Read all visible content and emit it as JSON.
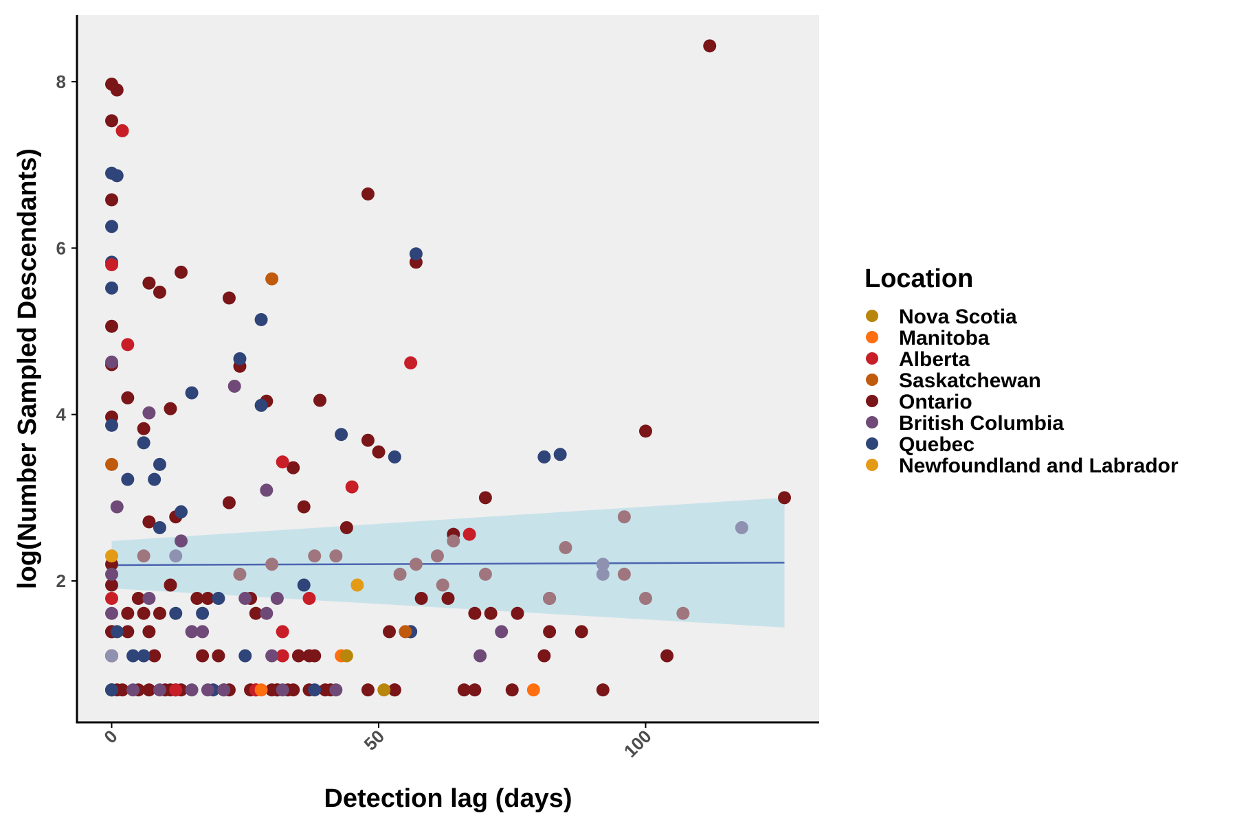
{
  "chart_data": {
    "type": "scatter",
    "xlabel": "Detection lag (days)",
    "ylabel": "log(Number Sampled Descendants)",
    "xlim": [
      -6.5,
      132.5
    ],
    "ylim": [
      0.3,
      8.8
    ],
    "x_ticks": [
      0,
      50,
      100
    ],
    "y_ticks": [
      2,
      4,
      6,
      8
    ],
    "grid": false,
    "background": "#efefef",
    "legend": {
      "title": "Location",
      "placement": "right",
      "entries": [
        {
          "name": "Nova Scotia",
          "color": "#b8860b"
        },
        {
          "name": "Manitoba",
          "color": "#ff6f0f"
        },
        {
          "name": "Alberta",
          "color": "#c81e28"
        },
        {
          "name": "Saskatchewan",
          "color": "#c05a0c"
        },
        {
          "name": "Ontario",
          "color": "#7a1518"
        },
        {
          "name": "British Columbia",
          "color": "#6f4a78"
        },
        {
          "name": "Quebec",
          "color": "#2f4478"
        },
        {
          "name": "Newfoundland and Labrador",
          "color": "#e39b16"
        }
      ]
    },
    "trend": {
      "x": [
        0,
        126
      ],
      "y": [
        2.19,
        2.22
      ],
      "ci_upper": [
        2.48,
        3.0
      ],
      "ci_lower": [
        1.91,
        1.44
      ],
      "line_color": "#4a64b0",
      "band_color": "#add8e6"
    },
    "series": [
      {
        "name": "Ontario",
        "color": "#7a1518",
        "x": [
          0,
          0,
          1,
          0,
          0,
          0,
          0,
          0,
          0,
          0,
          0,
          0,
          3,
          6,
          7,
          9,
          11,
          13,
          22,
          24,
          29,
          39,
          48,
          50,
          57,
          36,
          34,
          38,
          44,
          12,
          7,
          11,
          22,
          27,
          37,
          1,
          3,
          5,
          6,
          7,
          9,
          11,
          13,
          16,
          17,
          20,
          26,
          27,
          31,
          33,
          35,
          37,
          41,
          52,
          53,
          56,
          58,
          63,
          68,
          71,
          76,
          82,
          88,
          100,
          104,
          112,
          126,
          70,
          64,
          0,
          2,
          7,
          21,
          22,
          26,
          30,
          31,
          34,
          40,
          48,
          53,
          66,
          68,
          75,
          92,
          82,
          81,
          48,
          3,
          5,
          8,
          10,
          18
        ],
        "y": [
          7.97,
          7.53,
          7.9,
          6.58,
          5.06,
          4.6,
          3.97,
          2.2,
          1.95,
          1.39,
          1.1,
          0.69,
          4.2,
          3.83,
          5.58,
          5.47,
          4.07,
          5.71,
          5.4,
          4.58,
          4.16,
          4.17,
          6.65,
          3.55,
          5.83,
          2.89,
          3.36,
          1.1,
          2.64,
          2.77,
          2.71,
          1.95,
          2.94,
          1.61,
          1.1,
          0.69,
          1.39,
          1.79,
          1.61,
          1.39,
          1.61,
          0.69,
          0.69,
          1.79,
          1.1,
          1.1,
          1.79,
          0.69,
          0.69,
          0.69,
          1.1,
          0.69,
          0.69,
          1.39,
          0.69,
          1.39,
          1.79,
          1.79,
          1.61,
          1.61,
          1.61,
          1.39,
          1.39,
          3.8,
          1.1,
          8.43,
          3.0,
          3.0,
          2.56,
          1.39,
          0.69,
          0.69,
          0.69,
          0.69,
          0.69,
          0.69,
          0.69,
          0.69,
          0.69,
          0.69,
          0.69,
          0.69,
          0.69,
          0.69,
          0.69,
          1.79,
          1.1,
          3.69,
          1.61,
          0.69,
          1.1,
          0.69,
          1.79
        ]
      },
      {
        "name": "Quebec",
        "color": "#2f4478",
        "x": [
          0,
          0,
          1,
          0,
          0,
          0,
          0,
          6,
          9,
          15,
          24,
          28,
          28,
          43,
          53,
          57,
          81,
          84,
          3,
          8,
          9,
          13,
          12,
          17,
          20,
          25,
          36,
          56,
          4,
          6,
          0,
          12,
          19,
          38,
          1
        ],
        "y": [
          6.9,
          6.26,
          6.87,
          5.83,
          5.52,
          3.87,
          0.69,
          3.66,
          3.4,
          4.26,
          4.67,
          5.14,
          4.11,
          3.76,
          3.49,
          5.93,
          3.49,
          3.52,
          3.22,
          3.22,
          2.64,
          2.83,
          1.61,
          1.61,
          1.79,
          1.1,
          1.95,
          1.39,
          1.1,
          1.1,
          0.69,
          0.69,
          0.69,
          0.69,
          1.39
        ]
      },
      {
        "name": "Alberta",
        "color": "#c81e28",
        "x": [
          0,
          2,
          3,
          0,
          56,
          45,
          32,
          37,
          32,
          32,
          67,
          12,
          27,
          0
        ],
        "y": [
          5.8,
          7.41,
          4.84,
          1.79,
          4.62,
          3.13,
          3.43,
          1.79,
          1.39,
          1.1,
          2.56,
          0.69,
          0.69,
          1.1
        ]
      },
      {
        "name": "British Columbia",
        "color": "#6f4a78",
        "x": [
          0,
          7,
          23,
          29,
          1,
          13,
          0,
          7,
          25,
          31,
          15,
          17,
          29,
          30,
          69,
          73,
          0,
          4,
          9,
          15,
          18,
          21,
          32,
          42
        ],
        "y": [
          4.63,
          4.02,
          4.34,
          3.09,
          2.89,
          2.48,
          2.08,
          1.79,
          1.79,
          1.79,
          1.39,
          1.39,
          1.61,
          1.1,
          1.1,
          1.39,
          1.61,
          0.69,
          0.69,
          0.69,
          0.69,
          0.69,
          0.69,
          0.69
        ]
      },
      {
        "name": "British Columbia",
        "color": "#8f91b0",
        "x": [
          12,
          92,
          118,
          0,
          92
        ],
        "y": [
          2.3,
          2.2,
          2.64,
          1.1,
          2.08
        ]
      },
      {
        "name": "British Columbia",
        "color": "#a0767e",
        "x": [
          6,
          24,
          30,
          38,
          42,
          54,
          57,
          61,
          62,
          64,
          70,
          85,
          96,
          100,
          107,
          96,
          82
        ],
        "y": [
          2.3,
          2.08,
          2.2,
          2.3,
          2.3,
          2.08,
          2.2,
          2.3,
          1.95,
          2.48,
          2.08,
          2.4,
          2.08,
          1.79,
          1.61,
          2.77,
          1.79
        ]
      },
      {
        "name": "Saskatchewan",
        "color": "#c05a0c",
        "x": [
          0,
          30,
          55
        ],
        "y": [
          3.4,
          5.63,
          1.39
        ]
      },
      {
        "name": "Manitoba",
        "color": "#ff6f0f",
        "x": [
          43,
          79,
          28
        ],
        "y": [
          1.1,
          0.69,
          0.69
        ]
      },
      {
        "name": "Nova Scotia",
        "color": "#b8860b",
        "x": [
          44,
          51
        ],
        "y": [
          1.1,
          0.69
        ]
      },
      {
        "name": "Newfoundland and Labrador",
        "color": "#e39b16",
        "x": [
          0,
          46
        ],
        "y": [
          2.3,
          1.95
        ]
      }
    ]
  }
}
